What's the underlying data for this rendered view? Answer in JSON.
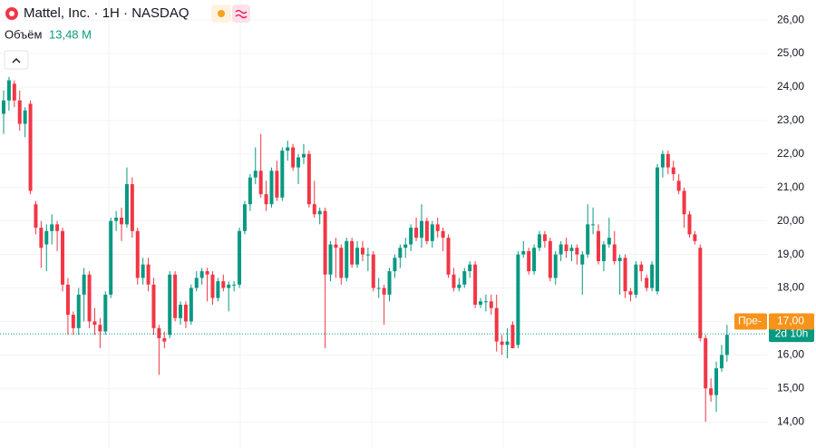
{
  "chart_data": {
    "type": "candlestick",
    "title": "Mattel, Inc. · 1H · NASDAQ",
    "volume_label": "Объём",
    "volume": {
      "value": 13480000,
      "label": "13,48 M"
    },
    "up_color": "#089981",
    "down_color": "#f23645",
    "ylim": [
      13.22,
      26.6
    ],
    "yticks": [
      {
        "value": 14,
        "label": "14,00"
      },
      {
        "value": 15,
        "label": "15,00"
      },
      {
        "value": 16,
        "label": "16,00"
      },
      {
        "value": 17,
        "label": "17,00"
      },
      {
        "value": 18,
        "label": "18,00"
      },
      {
        "value": 19,
        "label": "19,00"
      },
      {
        "value": 20,
        "label": "20,00"
      },
      {
        "value": 21,
        "label": "21,00"
      },
      {
        "value": 22,
        "label": "22,00"
      },
      {
        "value": 23,
        "label": "23,00"
      },
      {
        "value": 24,
        "label": "24,00"
      },
      {
        "value": 25,
        "label": "25,00"
      },
      {
        "value": 26,
        "label": "26,00"
      }
    ],
    "grid": true,
    "pre_market": {
      "name": "Пре-",
      "value": 17,
      "label": "17,00",
      "color": "#f7931a"
    },
    "last_price": {
      "value": 16.63,
      "label": "2d 10h",
      "color": "#089981"
    },
    "ohlc": [
      [
        23.2,
        23.9,
        22.6,
        23.6
      ],
      [
        23.6,
        24.3,
        23.3,
        24.2
      ],
      [
        24.1,
        24.2,
        23.4,
        23.6
      ],
      [
        23.6,
        23.9,
        22.7,
        22.9
      ],
      [
        22.9,
        23.4,
        22.5,
        23.3
      ],
      [
        23.5,
        23.6,
        20.8,
        20.9
      ],
      [
        20.5,
        20.6,
        19.6,
        19.8
      ],
      [
        19.8,
        20.0,
        18.6,
        19.2
      ],
      [
        19.3,
        19.9,
        18.5,
        19.7
      ],
      [
        19.7,
        20.2,
        19.3,
        19.9
      ],
      [
        19.9,
        20.0,
        19.1,
        19.7
      ],
      [
        19.7,
        19.8,
        17.9,
        18.1
      ],
      [
        18.1,
        18.3,
        16.6,
        17.2
      ],
      [
        17.2,
        17.3,
        16.6,
        16.8
      ],
      [
        16.8,
        18.0,
        16.6,
        17.8
      ],
      [
        17.8,
        18.6,
        17.0,
        18.4
      ],
      [
        18.4,
        18.5,
        16.8,
        17.0
      ],
      [
        17.0,
        17.4,
        16.6,
        16.9
      ],
      [
        16.9,
        17.1,
        16.2,
        16.7
      ],
      [
        16.7,
        17.9,
        16.6,
        17.8
      ],
      [
        17.8,
        20.1,
        17.7,
        20.0
      ],
      [
        20.0,
        20.3,
        19.7,
        20.1
      ],
      [
        20.1,
        20.4,
        19.4,
        19.9
      ],
      [
        19.9,
        21.6,
        19.8,
        21.1
      ],
      [
        21.1,
        21.3,
        19.5,
        19.7
      ],
      [
        19.7,
        19.8,
        18.1,
        18.3
      ],
      [
        18.3,
        18.9,
        18.1,
        18.7
      ],
      [
        18.7,
        18.9,
        17.9,
        18.1
      ],
      [
        18.1,
        18.3,
        16.6,
        16.8
      ],
      [
        16.8,
        16.9,
        15.4,
        16.5
      ],
      [
        16.5,
        16.7,
        16.2,
        16.4
      ],
      [
        16.6,
        18.5,
        16.5,
        18.4
      ],
      [
        18.4,
        18.5,
        17.0,
        17.1
      ],
      [
        17.1,
        17.6,
        16.9,
        17.5
      ],
      [
        17.5,
        17.6,
        16.8,
        17.0
      ],
      [
        17.0,
        18.1,
        16.9,
        18.0
      ],
      [
        18.0,
        18.5,
        17.9,
        18.3
      ],
      [
        18.3,
        18.6,
        18.1,
        18.5
      ],
      [
        18.5,
        18.6,
        17.6,
        18.4
      ],
      [
        18.4,
        18.5,
        17.5,
        17.7
      ],
      [
        17.7,
        18.3,
        17.6,
        18.2
      ],
      [
        18.2,
        18.4,
        17.9,
        18.0
      ],
      [
        18.0,
        18.2,
        17.3,
        18.1
      ],
      [
        18.1,
        18.2,
        17.9,
        18.1
      ],
      [
        18.1,
        19.8,
        18.0,
        19.7
      ],
      [
        19.7,
        20.6,
        19.6,
        20.5
      ],
      [
        20.5,
        21.4,
        20.3,
        21.3
      ],
      [
        21.3,
        22.2,
        21.1,
        21.5
      ],
      [
        21.5,
        22.6,
        20.7,
        20.8
      ],
      [
        20.8,
        21.2,
        20.3,
        20.5
      ],
      [
        20.5,
        21.6,
        20.4,
        21.5
      ],
      [
        21.5,
        21.8,
        20.6,
        20.7
      ],
      [
        20.7,
        22.2,
        20.6,
        22.1
      ],
      [
        22.1,
        22.4,
        21.8,
        22.2
      ],
      [
        22.2,
        22.3,
        21.5,
        21.6
      ],
      [
        21.6,
        22.0,
        21.1,
        21.9
      ],
      [
        21.9,
        22.3,
        21.7,
        22.0
      ],
      [
        22.0,
        22.1,
        20.4,
        20.5
      ],
      [
        20.5,
        21.2,
        20.1,
        20.2
      ],
      [
        20.2,
        20.4,
        19.9,
        20.3
      ],
      [
        20.3,
        20.4,
        16.2,
        18.4
      ],
      [
        18.4,
        19.4,
        18.2,
        19.3
      ],
      [
        19.3,
        19.5,
        18.3,
        19.2
      ],
      [
        19.2,
        19.3,
        18.1,
        18.3
      ],
      [
        18.3,
        19.5,
        18.2,
        19.4
      ],
      [
        19.4,
        19.5,
        18.6,
        18.7
      ],
      [
        18.7,
        19.4,
        18.6,
        19.2
      ],
      [
        19.2,
        19.4,
        18.8,
        19.0
      ],
      [
        19.0,
        19.2,
        18.5,
        19.0
      ],
      [
        19.0,
        19.1,
        17.9,
        18.0
      ],
      [
        18.0,
        18.3,
        17.7,
        18.0
      ],
      [
        18.0,
        18.1,
        16.9,
        17.8
      ],
      [
        17.8,
        18.6,
        17.6,
        18.5
      ],
      [
        18.5,
        19.0,
        18.3,
        18.9
      ],
      [
        18.9,
        19.3,
        18.6,
        19.2
      ],
      [
        19.2,
        19.5,
        18.9,
        19.3
      ],
      [
        19.3,
        19.9,
        19.1,
        19.8
      ],
      [
        19.8,
        20.1,
        19.4,
        19.5
      ],
      [
        19.5,
        20.5,
        19.2,
        20.0
      ],
      [
        20.0,
        20.1,
        19.3,
        19.4
      ],
      [
        19.4,
        20.0,
        19.2,
        19.9
      ],
      [
        19.9,
        20.1,
        19.5,
        19.7
      ],
      [
        19.7,
        19.8,
        19.1,
        19.5
      ],
      [
        19.5,
        19.6,
        18.3,
        18.4
      ],
      [
        18.4,
        18.6,
        17.9,
        18.0
      ],
      [
        18.0,
        18.3,
        17.9,
        18.1
      ],
      [
        18.1,
        18.6,
        18.0,
        18.5
      ],
      [
        18.5,
        18.8,
        18.3,
        18.7
      ],
      [
        18.7,
        18.8,
        17.4,
        17.5
      ],
      [
        17.5,
        17.7,
        17.4,
        17.6
      ],
      [
        17.6,
        17.8,
        17.3,
        17.6
      ],
      [
        17.6,
        17.8,
        17.2,
        17.4
      ],
      [
        17.4,
        17.8,
        16.1,
        16.4
      ],
      [
        16.4,
        16.6,
        16.0,
        16.3
      ],
      [
        16.3,
        16.8,
        15.9,
        16.4
      ],
      [
        16.9,
        17.0,
        16.2,
        16.2
      ],
      [
        16.3,
        19.1,
        16.2,
        19.0
      ],
      [
        19.0,
        19.4,
        18.9,
        19.1
      ],
      [
        19.1,
        19.2,
        18.4,
        18.5
      ],
      [
        18.5,
        19.3,
        18.4,
        19.2
      ],
      [
        19.2,
        19.7,
        19.1,
        19.6
      ],
      [
        19.6,
        19.7,
        19.2,
        19.4
      ],
      [
        19.4,
        19.5,
        18.2,
        18.3
      ],
      [
        18.3,
        19.1,
        18.1,
        19.0
      ],
      [
        19.0,
        19.4,
        18.8,
        19.3
      ],
      [
        19.3,
        19.5,
        18.9,
        19.1
      ],
      [
        19.1,
        19.3,
        18.8,
        19.2
      ],
      [
        19.2,
        19.3,
        18.7,
        19.0
      ],
      [
        18.7,
        19.1,
        17.8,
        19.0
      ],
      [
        19.0,
        20.5,
        18.9,
        19.9
      ],
      [
        19.9,
        20.4,
        19.6,
        19.9
      ],
      [
        19.7,
        19.9,
        18.7,
        18.8
      ],
      [
        18.8,
        19.4,
        18.5,
        19.3
      ],
      [
        19.3,
        20.1,
        19.2,
        19.5
      ],
      [
        19.3,
        19.7,
        18.7,
        18.8
      ],
      [
        18.8,
        19.0,
        17.8,
        18.9
      ],
      [
        18.9,
        19.0,
        17.7,
        17.9
      ],
      [
        17.9,
        18.0,
        17.6,
        17.8
      ],
      [
        17.8,
        18.8,
        17.7,
        18.7
      ],
      [
        18.7,
        18.8,
        18.2,
        18.5
      ],
      [
        18.3,
        18.4,
        17.9,
        18.0
      ],
      [
        18.0,
        18.8,
        17.9,
        18.7
      ],
      [
        17.9,
        21.7,
        17.8,
        21.6
      ],
      [
        21.6,
        22.1,
        21.3,
        22.0
      ],
      [
        22.0,
        22.1,
        21.4,
        21.6
      ],
      [
        21.6,
        21.8,
        21.2,
        21.4
      ],
      [
        21.2,
        21.4,
        20.8,
        20.9
      ],
      [
        20.9,
        21.0,
        19.8,
        20.2
      ],
      [
        20.2,
        20.3,
        19.5,
        19.6
      ],
      [
        19.6,
        19.7,
        19.3,
        19.4
      ],
      [
        19.2,
        19.3,
        16.4,
        16.5
      ],
      [
        16.5,
        16.6,
        14.0,
        15.0
      ],
      [
        15.0,
        15.3,
        14.6,
        14.8
      ],
      [
        14.8,
        15.8,
        14.3,
        15.6
      ],
      [
        15.6,
        16.3,
        15.5,
        16.0
      ],
      [
        16.0,
        16.9,
        15.8,
        16.6
      ]
    ]
  }
}
